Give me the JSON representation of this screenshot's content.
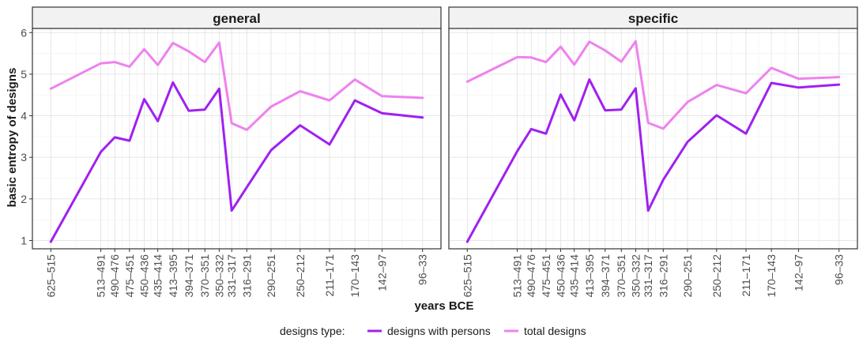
{
  "chart_data": {
    "type": "line",
    "xlabel": "years BCE",
    "ylabel": "basic entropy of designs",
    "ylim": [
      0.8,
      6.1
    ],
    "yticks": [
      1,
      2,
      3,
      4,
      5,
      6
    ],
    "grid": true,
    "legend": {
      "placement": "bottom",
      "title": "designs type:",
      "entries": [
        "designs with persons",
        "total designs"
      ]
    },
    "categories": [
      "625–515",
      "513–491",
      "490–476",
      "475–451",
      "450–436",
      "435–414",
      "413–395",
      "394–371",
      "370–351",
      "350–332",
      "331–317",
      "316–291",
      "290–251",
      "250–212",
      "211–171",
      "170–143",
      "142–97",
      "96–33"
    ],
    "x": [
      570,
      502,
      483,
      463,
      443,
      424.5,
      404,
      382.5,
      360.5,
      341,
      324,
      303.5,
      270.5,
      231,
      191,
      156.5,
      119.5,
      64.5
    ],
    "panels": [
      {
        "title": "general",
        "series": [
          {
            "name": "designs with persons",
            "color": "#a020f0",
            "values": [
              0.97,
              3.13,
              3.48,
              3.4,
              4.4,
              3.87,
              4.8,
              4.12,
              4.15,
              4.65,
              1.72,
              2.28,
              3.17,
              3.77,
              3.31,
              4.37,
              4.06,
              3.96
            ]
          },
          {
            "name": "total designs",
            "color": "#ee82ee",
            "values": [
              4.65,
              5.26,
              5.29,
              5.18,
              5.6,
              5.22,
              5.75,
              5.55,
              5.29,
              5.76,
              3.82,
              3.66,
              4.22,
              4.59,
              4.37,
              4.87,
              4.47,
              4.43
            ]
          }
        ]
      },
      {
        "title": "specific",
        "series": [
          {
            "name": "designs with persons",
            "color": "#a020f0",
            "values": [
              0.97,
              3.15,
              3.68,
              3.57,
              4.51,
              3.89,
              4.87,
              4.13,
              4.15,
              4.66,
              1.72,
              2.46,
              3.37,
              4.01,
              3.57,
              4.79,
              4.68,
              4.75
            ]
          },
          {
            "name": "total designs",
            "color": "#ee82ee",
            "values": [
              4.82,
              5.41,
              5.4,
              5.29,
              5.66,
              5.23,
              5.78,
              5.57,
              5.3,
              5.79,
              3.83,
              3.69,
              4.33,
              4.74,
              4.54,
              5.15,
              4.89,
              4.93
            ]
          }
        ]
      }
    ]
  }
}
